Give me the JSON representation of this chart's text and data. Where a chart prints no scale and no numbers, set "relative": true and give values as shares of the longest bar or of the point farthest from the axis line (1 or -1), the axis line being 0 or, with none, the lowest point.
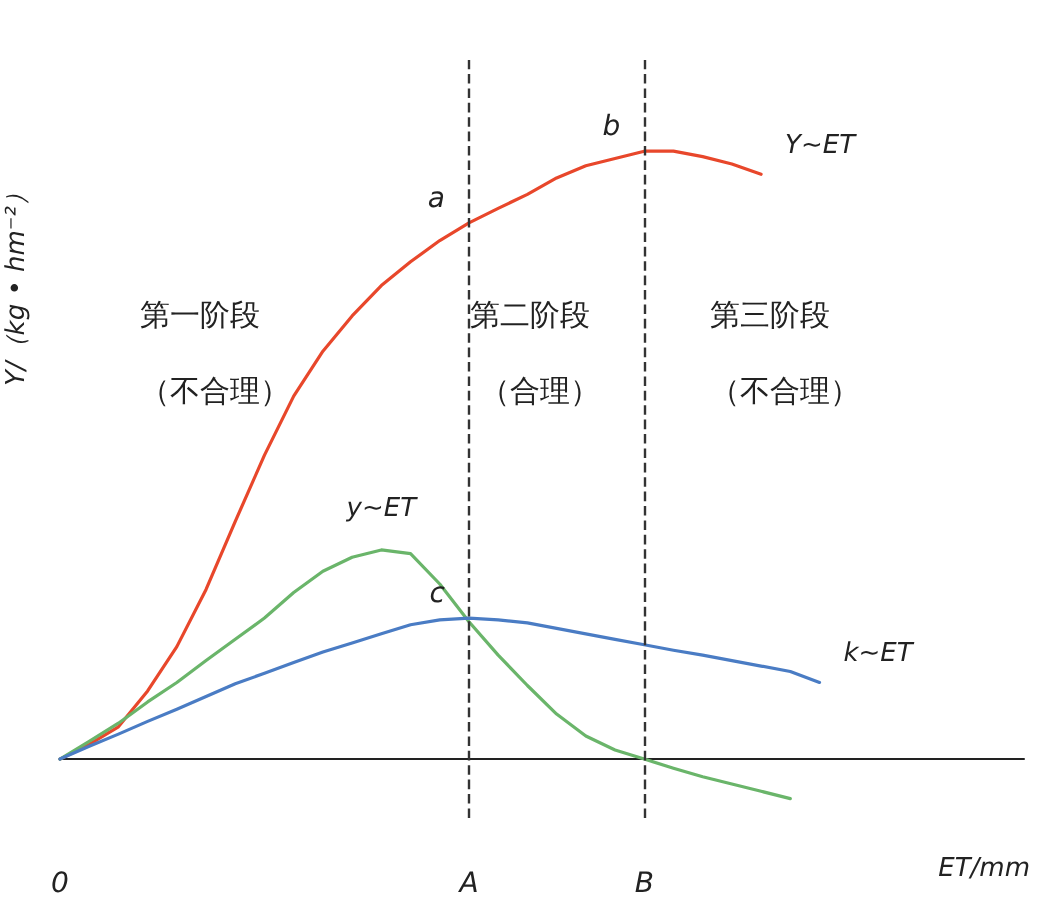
{
  "chart_data": {
    "type": "line",
    "relative": true,
    "xlabel": "ET/mm",
    "ylabel": "Y/（kg • hm⁻²）",
    "categories": [
      "0",
      null,
      null,
      null,
      null,
      null,
      null,
      null,
      null,
      null,
      null,
      null,
      null,
      null,
      "A",
      null,
      null,
      null,
      null,
      null,
      "B",
      null,
      null,
      null,
      null,
      null,
      null,
      null,
      null,
      null,
      null,
      null,
      null,
      null
    ],
    "series": [
      {
        "name": "Y~ET",
        "color": "#e8472b",
        "values": [
          0,
          0.024,
          0.053,
          0.112,
          0.185,
          0.279,
          0.391,
          0.5,
          0.597,
          0.671,
          0.729,
          0.779,
          0.818,
          0.853,
          0.882,
          0.906,
          0.929,
          0.956,
          0.976,
          0.988,
          1,
          1,
          0.991,
          0.979,
          0.962,
          null,
          null,
          null,
          null,
          null,
          null,
          null,
          null,
          null
        ]
      },
      {
        "name": "y~ET",
        "color": "#6ab56a",
        "values": [
          0,
          0.029,
          0.059,
          0.094,
          0.126,
          0.162,
          0.197,
          0.232,
          0.274,
          0.309,
          0.332,
          0.344,
          0.338,
          0.288,
          0.226,
          0.171,
          0.121,
          0.074,
          0.038,
          0.015,
          0,
          -0.015,
          -0.029,
          -0.041,
          -0.053,
          -0.065,
          null,
          null,
          null,
          null,
          null,
          null,
          null,
          null
        ]
      },
      {
        "name": "k~ET",
        "color": "#4a7cc4",
        "values": [
          0,
          0.021,
          0.041,
          0.062,
          0.082,
          0.103,
          0.124,
          0.141,
          0.159,
          0.176,
          0.191,
          0.206,
          0.221,
          0.229,
          0.232,
          0.229,
          0.224,
          0.215,
          0.206,
          0.197,
          0.188,
          0.179,
          0.171,
          0.162,
          0.153,
          0.144,
          0.126,
          null,
          null,
          null,
          null,
          null,
          null,
          null
        ]
      }
    ],
    "ref_lines": [
      {
        "axis": "x",
        "value": "A",
        "color": "#333333",
        "line_style": "dashed"
      },
      {
        "axis": "x",
        "value": "B",
        "color": "#333333",
        "line_style": "dashed"
      }
    ],
    "annotations": [
      {
        "text": "a",
        "x": "A",
        "y": 0.882
      },
      {
        "text": "b",
        "x": "B",
        "y": 1
      },
      {
        "text": "c",
        "x": "A",
        "y": 0.232
      },
      "第一阶段",
      "（不合理）",
      "第二阶段",
      "（合理）",
      "第三阶段",
      "（不合理）"
    ],
    "grid": false,
    "legend": false,
    "marker": "none",
    "line_style": "solid"
  }
}
